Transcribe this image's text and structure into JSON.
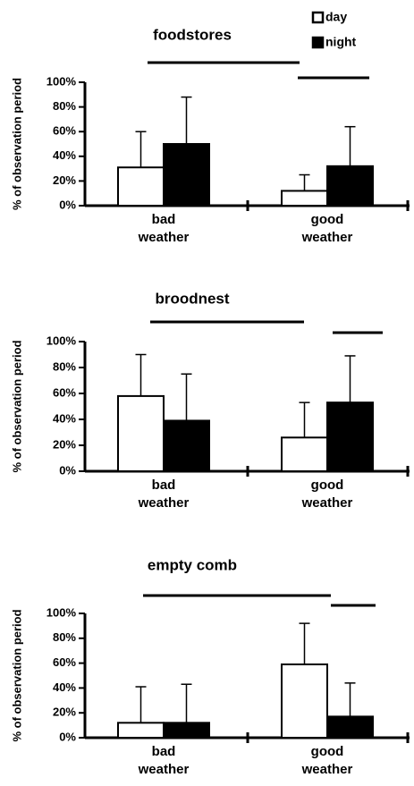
{
  "chart_data": [
    {
      "type": "bar",
      "title": "foodstores",
      "ylabel": "% of observation period",
      "categories": [
        "bad weather",
        "good weather"
      ],
      "series": [
        {
          "name": "day",
          "color": "#ffffff",
          "values": [
            31,
            12
          ],
          "errors": [
            29,
            13
          ]
        },
        {
          "name": "night",
          "color": "#000000",
          "values": [
            50,
            32
          ],
          "errors": [
            38,
            32
          ]
        }
      ],
      "ylim": [
        0,
        100
      ],
      "yticks": [
        {
          "value": 0,
          "label": "0%"
        },
        {
          "value": 20,
          "label": "20%"
        },
        {
          "value": 40,
          "label": "40%"
        },
        {
          "value": 60,
          "label": "60%"
        },
        {
          "value": 80,
          "label": "80%"
        },
        {
          "value": 100,
          "label": "100%"
        }
      ]
    },
    {
      "type": "bar",
      "title": "broodnest",
      "ylabel": "% of observation period",
      "categories": [
        "bad weather",
        "good weather"
      ],
      "series": [
        {
          "color": "#ffffff",
          "values": [
            58,
            26
          ],
          "errors": [
            32,
            27
          ]
        },
        {
          "color": "#000000",
          "values": [
            39,
            53
          ],
          "errors": [
            36,
            36
          ]
        }
      ],
      "ylim": [
        0,
        100
      ],
      "yticks": [
        {
          "value": 0,
          "label": "0%"
        },
        {
          "value": 20,
          "label": "20%"
        },
        {
          "value": 40,
          "label": "40%"
        },
        {
          "value": 60,
          "label": "60%"
        },
        {
          "value": 80,
          "label": "80%"
        },
        {
          "value": 100,
          "label": "100%"
        }
      ]
    },
    {
      "type": "bar",
      "title": "empty comb",
      "ylabel": "% of observation period",
      "categories": [
        "bad weather",
        "good weather"
      ],
      "series": [
        {
          "color": "#ffffff",
          "values": [
            12,
            59
          ],
          "errors": [
            29,
            33
          ]
        },
        {
          "color": "#000000",
          "values": [
            12,
            17
          ],
          "errors": [
            31,
            27
          ]
        }
      ],
      "ylim": [
        0,
        100
      ],
      "yticks": [
        {
          "value": 0,
          "label": "0%"
        },
        {
          "value": 20,
          "label": "20%"
        },
        {
          "value": 40,
          "label": "40%"
        },
        {
          "value": 60,
          "label": "60%"
        },
        {
          "value": 80,
          "label": "80%"
        },
        {
          "value": 100,
          "label": "100%"
        }
      ]
    }
  ]
}
